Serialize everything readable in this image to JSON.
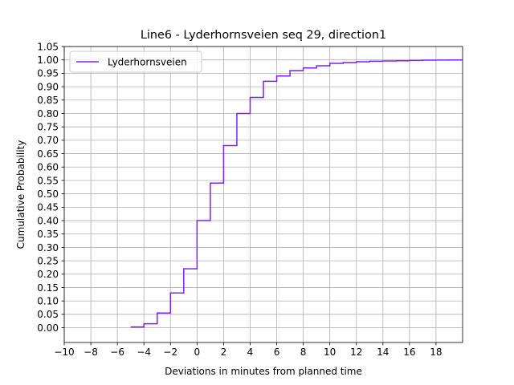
{
  "chart_data": {
    "type": "line",
    "drawstyle": "steps-post",
    "title": "Line6 - Lyderhornsveien seq 29, direction1",
    "xlabel": "Deviations in minutes from planned time",
    "ylabel": "Cumulative Probability",
    "xlim": [
      -10,
      20
    ],
    "ylim": [
      -0.055,
      1.05
    ],
    "xticks": [
      -10,
      -8,
      -6,
      -4,
      -2,
      0,
      2,
      4,
      6,
      8,
      10,
      12,
      14,
      16,
      18
    ],
    "xtick_labels": [
      "−10",
      "−8",
      "−6",
      "−4",
      "−2",
      "0",
      "2",
      "4",
      "6",
      "8",
      "10",
      "12",
      "14",
      "16",
      "18"
    ],
    "yticks": [
      0,
      0.05,
      0.1,
      0.15,
      0.2,
      0.25,
      0.3,
      0.35,
      0.4,
      0.45,
      0.5,
      0.55,
      0.6,
      0.65,
      0.7,
      0.75,
      0.8,
      0.85,
      0.9,
      0.95,
      1.0,
      1.05
    ],
    "ytick_labels": [
      "0.00",
      "0.05",
      "0.10",
      "0.15",
      "0.20",
      "0.25",
      "0.30",
      "0.35",
      "0.40",
      "0.45",
      "0.50",
      "0.55",
      "0.60",
      "0.65",
      "0.70",
      "0.75",
      "0.80",
      "0.85",
      "0.90",
      "0.95",
      "1.00",
      "1.05"
    ],
    "grid": true,
    "legend_position": "upper-left",
    "series": [
      {
        "name": "Lyderhornsveien",
        "color": "#7f1fff",
        "x": [
          -5,
          -4,
          -3,
          -2,
          -1,
          0,
          1,
          2,
          3,
          4,
          5,
          6,
          7,
          8,
          9,
          10,
          11,
          12,
          13,
          14,
          15,
          16,
          17,
          18,
          19,
          20
        ],
        "y": [
          0.003,
          0.015,
          0.055,
          0.13,
          0.22,
          0.4,
          0.54,
          0.68,
          0.8,
          0.86,
          0.92,
          0.94,
          0.96,
          0.97,
          0.978,
          0.987,
          0.99,
          0.993,
          0.995,
          0.996,
          0.997,
          0.998,
          0.999,
          0.9995,
          1.0,
          1.0
        ]
      }
    ]
  }
}
